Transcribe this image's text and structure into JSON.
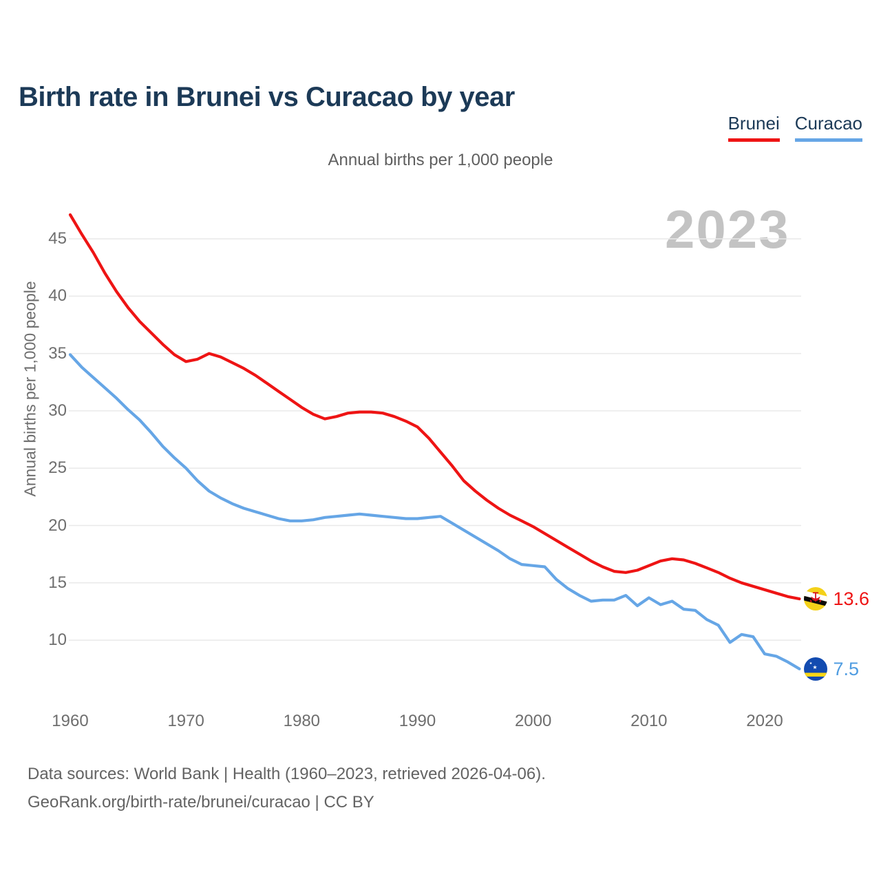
{
  "header": {
    "title": "Birth rate in Brunei vs Curacao by year"
  },
  "legend": [
    {
      "label": "Brunei",
      "color": "#ee1414"
    },
    {
      "label": "Curacao",
      "color": "#66a6e6"
    }
  ],
  "subtitle": "Annual births per 1,000 people",
  "watermark": "2023",
  "footer": {
    "line1": "Data sources: World Bank | Health (1960–2023, retrieved 2026-04-06).",
    "line2": "GeoRank.org/birth-rate/brunei/curacao | CC BY"
  },
  "colors": {
    "title_navy": "#1c3a57",
    "brunei_red": "#ee1414",
    "curacao_blue": "#66a6e6",
    "gridline": "#e9e9e9",
    "tick_gray": "#6e6e6e",
    "watermark_gray": "#c3c3c3"
  },
  "chart_data": {
    "type": "line",
    "title": "Birth rate in Brunei vs Curacao by year",
    "subtitle": "Annual births per 1,000 people",
    "ylabel": "Annual births per 1,000 people",
    "xlabel": "",
    "grid": true,
    "legend_position": "top-right",
    "x_ticks": [
      1960,
      1970,
      1980,
      1990,
      2000,
      2010,
      2020
    ],
    "y_ticks": [
      10,
      15,
      20,
      25,
      30,
      35,
      40,
      45
    ],
    "ylim": [
      6,
      48
    ],
    "x": [
      1960,
      1961,
      1962,
      1963,
      1964,
      1965,
      1966,
      1967,
      1968,
      1969,
      1970,
      1971,
      1972,
      1973,
      1974,
      1975,
      1976,
      1977,
      1978,
      1979,
      1980,
      1981,
      1982,
      1983,
      1984,
      1985,
      1986,
      1987,
      1988,
      1989,
      1990,
      1991,
      1992,
      1993,
      1994,
      1995,
      1996,
      1997,
      1998,
      1999,
      2000,
      2001,
      2002,
      2003,
      2004,
      2005,
      2006,
      2007,
      2008,
      2009,
      2010,
      2011,
      2012,
      2013,
      2014,
      2015,
      2016,
      2017,
      2018,
      2019,
      2020,
      2021,
      2022,
      2023
    ],
    "series": [
      {
        "name": "Brunei",
        "color": "#ee1414",
        "end_label": "13.6",
        "values": [
          47.1,
          45.4,
          43.8,
          42.0,
          40.4,
          39.0,
          37.8,
          36.8,
          35.8,
          34.9,
          34.3,
          34.5,
          35.0,
          34.7,
          34.2,
          33.7,
          33.1,
          32.4,
          31.7,
          31.0,
          30.3,
          29.7,
          29.3,
          29.5,
          29.8,
          29.9,
          29.9,
          29.8,
          29.5,
          29.1,
          28.6,
          27.6,
          26.4,
          25.2,
          23.9,
          23.0,
          22.2,
          21.5,
          20.9,
          20.4,
          19.9,
          19.3,
          18.7,
          18.1,
          17.5,
          16.9,
          16.4,
          16.0,
          15.9,
          16.1,
          16.5,
          16.9,
          17.1,
          17.0,
          16.7,
          16.3,
          15.9,
          15.4,
          15.0,
          14.7,
          14.4,
          14.1,
          13.8,
          13.6
        ]
      },
      {
        "name": "Curacao",
        "color": "#66a6e6",
        "end_label": "7.5",
        "values": [
          34.9,
          33.8,
          32.9,
          32.0,
          31.1,
          30.1,
          29.2,
          28.1,
          26.9,
          25.9,
          25.0,
          23.9,
          23.0,
          22.4,
          21.9,
          21.5,
          21.2,
          20.9,
          20.6,
          20.4,
          20.4,
          20.5,
          20.7,
          20.8,
          20.9,
          21.0,
          20.9,
          20.8,
          20.7,
          20.6,
          20.6,
          20.7,
          20.8,
          20.2,
          19.6,
          19.0,
          18.4,
          17.8,
          17.1,
          16.6,
          16.5,
          16.4,
          15.3,
          14.5,
          13.9,
          13.4,
          13.5,
          13.5,
          13.9,
          13.0,
          13.7,
          13.1,
          13.4,
          12.7,
          12.6,
          11.8,
          11.3,
          9.8,
          10.5,
          10.3,
          8.8,
          8.6,
          8.1,
          7.5
        ]
      }
    ]
  }
}
